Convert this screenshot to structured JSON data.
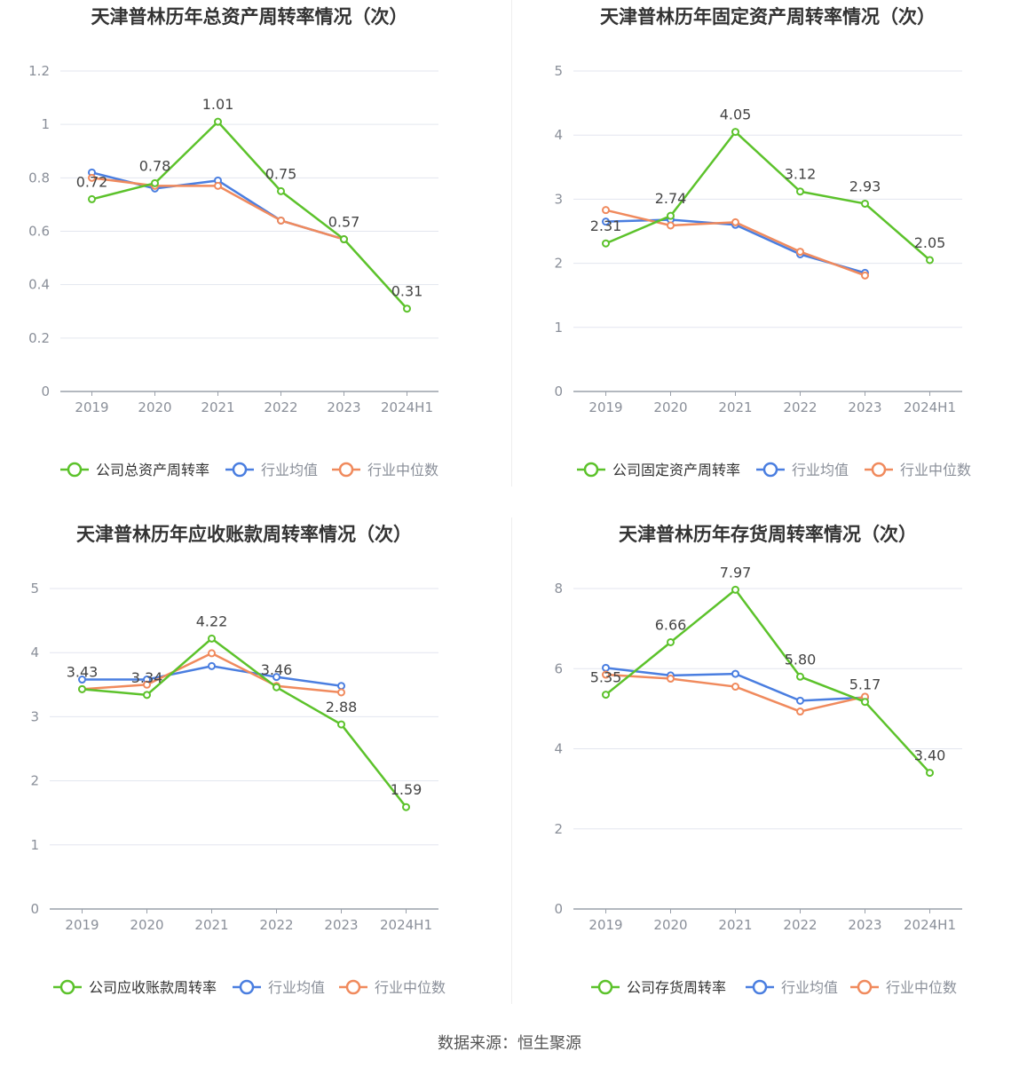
{
  "colors": {
    "company": "#5cc22b",
    "industry_avg": "#4a7ee0",
    "industry_median": "#f08a5d",
    "grid": "#e3e6ef",
    "axis": "#9aa0aa",
    "tick_text": "#8a8f99",
    "title_text": "#333333"
  },
  "footer": {
    "source": "数据来源：恒生聚源"
  },
  "chart_data": [
    {
      "type": "line",
      "title": "天津普林历年总资产周转率情况（次）",
      "categories": [
        "2019",
        "2020",
        "2021",
        "2022",
        "2023",
        "2024H1"
      ],
      "yticks": [
        "0",
        "0.2",
        "0.4",
        "0.6",
        "0.8",
        "1",
        "1.2"
      ],
      "ylim": [
        0,
        1.2
      ],
      "grid": true,
      "legend_position": "bottom",
      "series": [
        {
          "name": "公司总资产周转率",
          "role": "company",
          "values": [
            0.72,
            0.78,
            1.01,
            0.75,
            0.57,
            0.31
          ],
          "labels": [
            "0.72",
            "0.78",
            "1.01",
            "0.75",
            "0.57",
            "0.31"
          ]
        },
        {
          "name": "行业均值",
          "role": "industry_avg",
          "values": [
            0.82,
            0.76,
            0.79,
            0.64,
            0.57,
            null
          ]
        },
        {
          "name": "行业中位数",
          "role": "industry_median",
          "values": [
            0.8,
            0.77,
            0.77,
            0.64,
            0.57,
            null
          ]
        }
      ]
    },
    {
      "type": "line",
      "title": "天津普林历年固定资产周转率情况（次）",
      "categories": [
        "2019",
        "2020",
        "2021",
        "2022",
        "2023",
        "2024H1"
      ],
      "yticks": [
        "0",
        "1",
        "2",
        "3",
        "4",
        "5"
      ],
      "ylim": [
        0,
        5
      ],
      "grid": true,
      "legend_position": "bottom",
      "series": [
        {
          "name": "公司固定资产周转率",
          "role": "company",
          "values": [
            2.31,
            2.74,
            4.05,
            3.12,
            2.93,
            2.05
          ],
          "labels": [
            "2.31",
            "2.74",
            "4.05",
            "3.12",
            "2.93",
            "2.05"
          ]
        },
        {
          "name": "行业均值",
          "role": "industry_avg",
          "values": [
            2.65,
            2.68,
            2.6,
            2.14,
            1.85,
            null
          ]
        },
        {
          "name": "行业中位数",
          "role": "industry_median",
          "values": [
            2.83,
            2.59,
            2.64,
            2.18,
            1.81,
            null
          ]
        }
      ]
    },
    {
      "type": "line",
      "title": "天津普林历年应收账款周转率情况（次）",
      "categories": [
        "2019",
        "2020",
        "2021",
        "2022",
        "2023",
        "2024H1"
      ],
      "yticks": [
        "0",
        "1",
        "2",
        "3",
        "4",
        "5"
      ],
      "ylim": [
        0,
        5
      ],
      "grid": true,
      "legend_position": "bottom",
      "series": [
        {
          "name": "公司应收账款周转率",
          "role": "company",
          "values": [
            3.43,
            3.34,
            4.22,
            3.46,
            2.88,
            1.59
          ],
          "labels": [
            "3.43",
            "3.34",
            "4.22",
            "3.46",
            "2.88",
            "1.59"
          ]
        },
        {
          "name": "行业均值",
          "role": "industry_avg",
          "values": [
            3.58,
            3.58,
            3.79,
            3.62,
            3.48,
            null
          ]
        },
        {
          "name": "行业中位数",
          "role": "industry_median",
          "values": [
            3.43,
            3.5,
            3.99,
            3.48,
            3.38,
            null
          ]
        }
      ]
    },
    {
      "type": "line",
      "title": "天津普林历年存货周转率情况（次）",
      "categories": [
        "2019",
        "2020",
        "2021",
        "2022",
        "2023",
        "2024H1"
      ],
      "yticks": [
        "0",
        "2",
        "4",
        "6",
        "8"
      ],
      "ylim": [
        0,
        8
      ],
      "grid": true,
      "legend_position": "bottom",
      "series": [
        {
          "name": "公司存货周转率",
          "role": "company",
          "values": [
            5.35,
            6.66,
            7.97,
            5.8,
            5.17,
            3.4
          ],
          "labels": [
            "5.35",
            "6.66",
            "7.97",
            "5.80",
            "5.17",
            "3.40"
          ]
        },
        {
          "name": "行业均值",
          "role": "industry_avg",
          "values": [
            6.02,
            5.83,
            5.87,
            5.2,
            5.28,
            null
          ]
        },
        {
          "name": "行业中位数",
          "role": "industry_median",
          "values": [
            5.85,
            5.75,
            5.55,
            4.93,
            5.3,
            null
          ]
        }
      ]
    }
  ]
}
